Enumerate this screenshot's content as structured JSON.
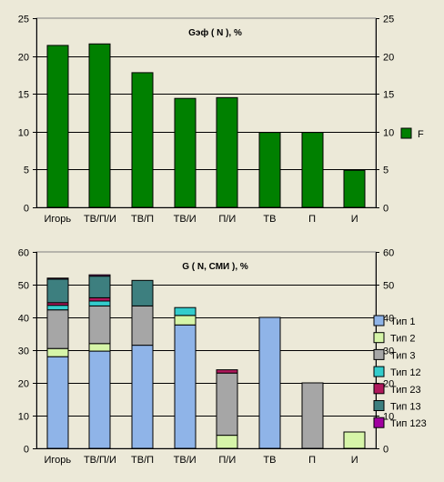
{
  "chart_data": [
    {
      "type": "bar",
      "title": "Gэф ( N ), %",
      "categories": [
        "Игорь",
        "ТВ/П/И",
        "ТВ/П",
        "ТВ/И",
        "П/И",
        "ТВ",
        "П",
        "И"
      ],
      "ylim": [
        0,
        25
      ],
      "yticks": [
        0,
        5,
        10,
        15,
        20,
        25
      ],
      "grid": true,
      "legend_position": "right",
      "series": [
        {
          "name": "F",
          "color": "#008000",
          "values": [
            21.4,
            21.6,
            17.8,
            14.4,
            14.5,
            9.9,
            9.9,
            4.9
          ]
        }
      ]
    },
    {
      "type": "bar",
      "stacked": true,
      "title": "G ( N, СМИ ), %",
      "categories": [
        "Игорь",
        "ТВ/П/И",
        "ТВ/П",
        "ТВ/И",
        "П/И",
        "ТВ",
        "П",
        "И"
      ],
      "ylim": [
        0,
        60
      ],
      "yticks": [
        0,
        10,
        20,
        30,
        40,
        50,
        60
      ],
      "grid": true,
      "legend_position": "right",
      "series": [
        {
          "name": "Тип 1",
          "color": "#8fb4e8",
          "values": [
            28.0,
            29.7,
            31.5,
            37.7,
            0.0,
            40.0,
            0.0,
            0.0
          ]
        },
        {
          "name": "Тип 2",
          "color": "#d6f5a8",
          "values": [
            2.5,
            2.3,
            0.0,
            2.9,
            4.0,
            0.0,
            0.0,
            5.0
          ]
        },
        {
          "name": "Тип 3",
          "color": "#a6a6a6",
          "values": [
            11.8,
            11.5,
            12.0,
            0.0,
            19.0,
            0.0,
            20.0,
            0.0
          ]
        },
        {
          "name": "Тип 12",
          "color": "#33cccc",
          "values": [
            1.4,
            1.5,
            0.0,
            2.4,
            0.0,
            0.0,
            0.0,
            0.0
          ]
        },
        {
          "name": "Тип 23",
          "color": "#b0185c",
          "values": [
            0.8,
            1.0,
            0.0,
            0.0,
            1.0,
            0.0,
            0.0,
            0.0
          ]
        },
        {
          "name": "Тип 13",
          "color": "#3d7f7f",
          "values": [
            7.2,
            6.6,
            7.8,
            0.0,
            0.0,
            0.0,
            0.0,
            0.0
          ]
        },
        {
          "name": "Тип 123",
          "color": "#a000a0",
          "values": [
            0.3,
            0.4,
            0.0,
            0.0,
            0.0,
            0.0,
            0.0,
            0.0
          ]
        }
      ]
    }
  ]
}
